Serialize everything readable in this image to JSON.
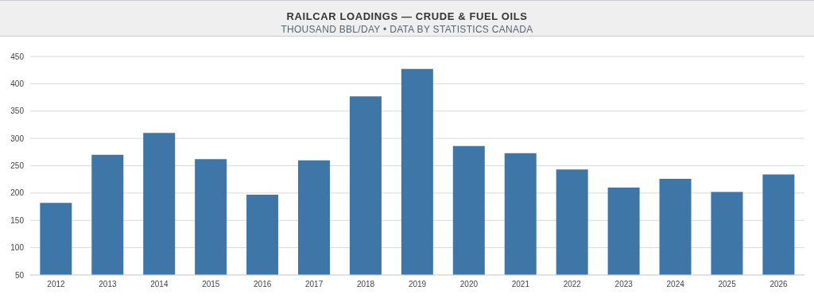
{
  "chart_data": {
    "type": "bar",
    "title": "RAILCAR LOADINGS — CRUDE & FUEL OILS",
    "subtitle": "THOUSAND BBL/DAY • DATA BY STATISTICS CANADA",
    "categories": [
      "2012",
      "2013",
      "2014",
      "2015",
      "2016",
      "2017",
      "2018",
      "2019",
      "2020",
      "2021",
      "2022",
      "2023",
      "2024",
      "2025",
      "2026"
    ],
    "values": [
      182,
      270,
      310,
      262,
      197,
      260,
      377,
      427,
      286,
      273,
      243,
      210,
      226,
      202,
      234
    ],
    "color": "#3f76a8",
    "ylim": [
      50,
      450
    ],
    "yticks": [
      50,
      100,
      150,
      200,
      250,
      300,
      350,
      400,
      450
    ],
    "grid": "y"
  }
}
